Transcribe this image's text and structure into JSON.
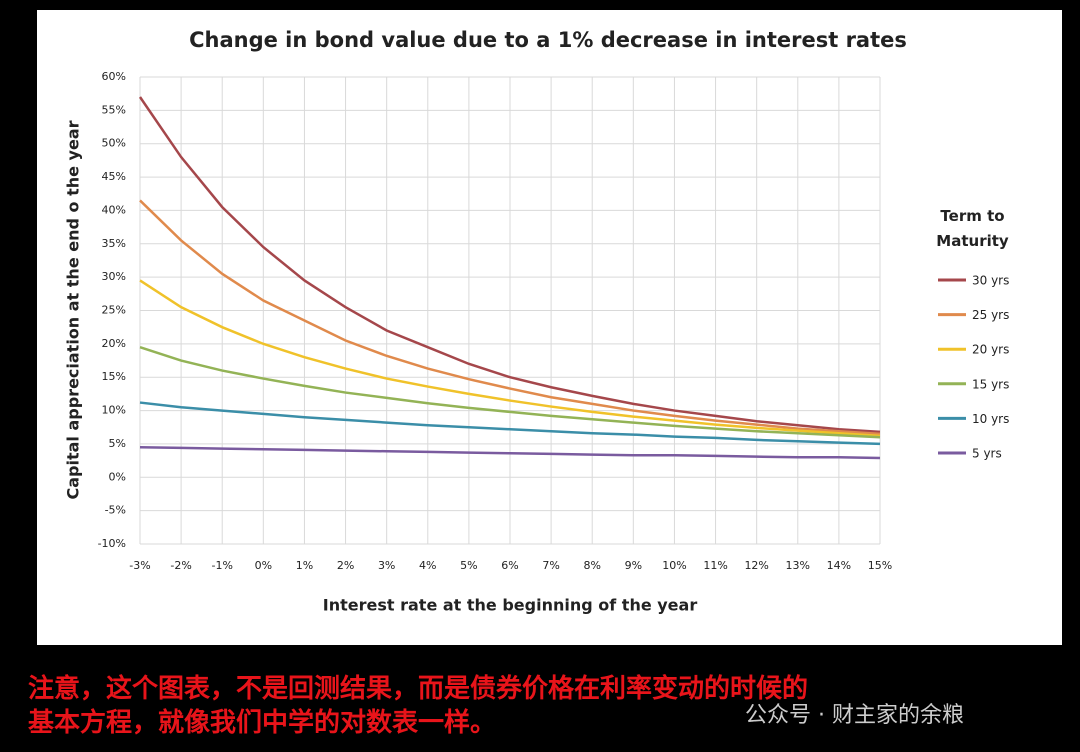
{
  "chart_data": {
    "type": "line",
    "title": "Change in bond value due to a 1% decrease in interest rates",
    "x_label": "Interest rate at the beginning of the year",
    "y_label": "Capital appreciation at the end o the year",
    "legend_title": "Term to Maturity",
    "legend": "right",
    "grid": true,
    "x": [
      -3,
      -2,
      -1,
      0,
      1,
      2,
      3,
      4,
      5,
      6,
      7,
      8,
      9,
      10,
      11,
      12,
      13,
      14,
      15
    ],
    "xlim": [
      -3,
      15
    ],
    "xticks": [
      {
        "value": -3,
        "label": "-3%"
      },
      {
        "value": -2,
        "label": "-2%"
      },
      {
        "value": -1,
        "label": "-1%"
      },
      {
        "value": 0,
        "label": "0%"
      },
      {
        "value": 1,
        "label": "1%"
      },
      {
        "value": 2,
        "label": "2%"
      },
      {
        "value": 3,
        "label": "3%"
      },
      {
        "value": 4,
        "label": "4%"
      },
      {
        "value": 5,
        "label": "5%"
      },
      {
        "value": 6,
        "label": "6%"
      },
      {
        "value": 7,
        "label": "7%"
      },
      {
        "value": 8,
        "label": "8%"
      },
      {
        "value": 9,
        "label": "9%"
      },
      {
        "value": 10,
        "label": "10%"
      },
      {
        "value": 11,
        "label": "11%"
      },
      {
        "value": 12,
        "label": "12%"
      },
      {
        "value": 13,
        "label": "13%"
      },
      {
        "value": 14,
        "label": "14%"
      },
      {
        "value": 15,
        "label": "15%"
      }
    ],
    "ylim": [
      -10,
      60
    ],
    "yticks": [
      {
        "value": -10,
        "label": "-10%"
      },
      {
        "value": -5,
        "label": "-5%"
      },
      {
        "value": 0,
        "label": "0%"
      },
      {
        "value": 5,
        "label": "5%"
      },
      {
        "value": 10,
        "label": "10%"
      },
      {
        "value": 15,
        "label": "15%"
      },
      {
        "value": 20,
        "label": "20%"
      },
      {
        "value": 25,
        "label": "25%"
      },
      {
        "value": 30,
        "label": "30%"
      },
      {
        "value": 35,
        "label": "35%"
      },
      {
        "value": 40,
        "label": "40%"
      },
      {
        "value": 45,
        "label": "45%"
      },
      {
        "value": 50,
        "label": "50%"
      },
      {
        "value": 55,
        "label": "55%"
      },
      {
        "value": 60,
        "label": "60%"
      }
    ],
    "series": [
      {
        "name": "30 yrs",
        "color": "#a5474b",
        "values": [
          57,
          48,
          40.5,
          34.5,
          29.5,
          25.5,
          22,
          19.5,
          17,
          15,
          13.5,
          12.2,
          11,
          10,
          9.2,
          8.4,
          7.8,
          7.2,
          6.8
        ]
      },
      {
        "name": "25 yrs",
        "color": "#e08a4c",
        "values": [
          41.5,
          35.5,
          30.5,
          26.5,
          23.5,
          20.5,
          18.2,
          16.3,
          14.7,
          13.3,
          12,
          11,
          10,
          9.2,
          8.5,
          7.9,
          7.3,
          6.9,
          6.5
        ]
      },
      {
        "name": "20 yrs",
        "color": "#f0c22a",
        "values": [
          29.5,
          25.5,
          22.5,
          20,
          18,
          16.3,
          14.8,
          13.6,
          12.5,
          11.5,
          10.6,
          9.8,
          9.1,
          8.5,
          7.9,
          7.4,
          7,
          6.6,
          6.2
        ]
      },
      {
        "name": "15 yrs",
        "color": "#93b356",
        "values": [
          19.5,
          17.5,
          16,
          14.8,
          13.7,
          12.7,
          11.9,
          11.1,
          10.4,
          9.8,
          9.2,
          8.7,
          8.2,
          7.7,
          7.3,
          6.9,
          6.6,
          6.3,
          6
        ]
      },
      {
        "name": "10 yrs",
        "color": "#3b8ea8",
        "values": [
          11.2,
          10.5,
          10,
          9.5,
          9,
          8.6,
          8.2,
          7.8,
          7.5,
          7.2,
          6.9,
          6.6,
          6.4,
          6.1,
          5.9,
          5.6,
          5.4,
          5.2,
          5
        ]
      },
      {
        "name": "5 yrs",
        "color": "#7a5b9f",
        "values": [
          4.5,
          4.4,
          4.3,
          4.2,
          4.1,
          4,
          3.9,
          3.8,
          3.7,
          3.6,
          3.5,
          3.4,
          3.3,
          3.3,
          3.2,
          3.1,
          3,
          3,
          2.9
        ]
      }
    ]
  },
  "caption": [
    "注意，这个图表，不是回测结果，而是债券价格在利率变动的时候的",
    "基本方程，就像我们中学的对数表一样。"
  ],
  "watermark": "公众号 · 财主家的余粮"
}
